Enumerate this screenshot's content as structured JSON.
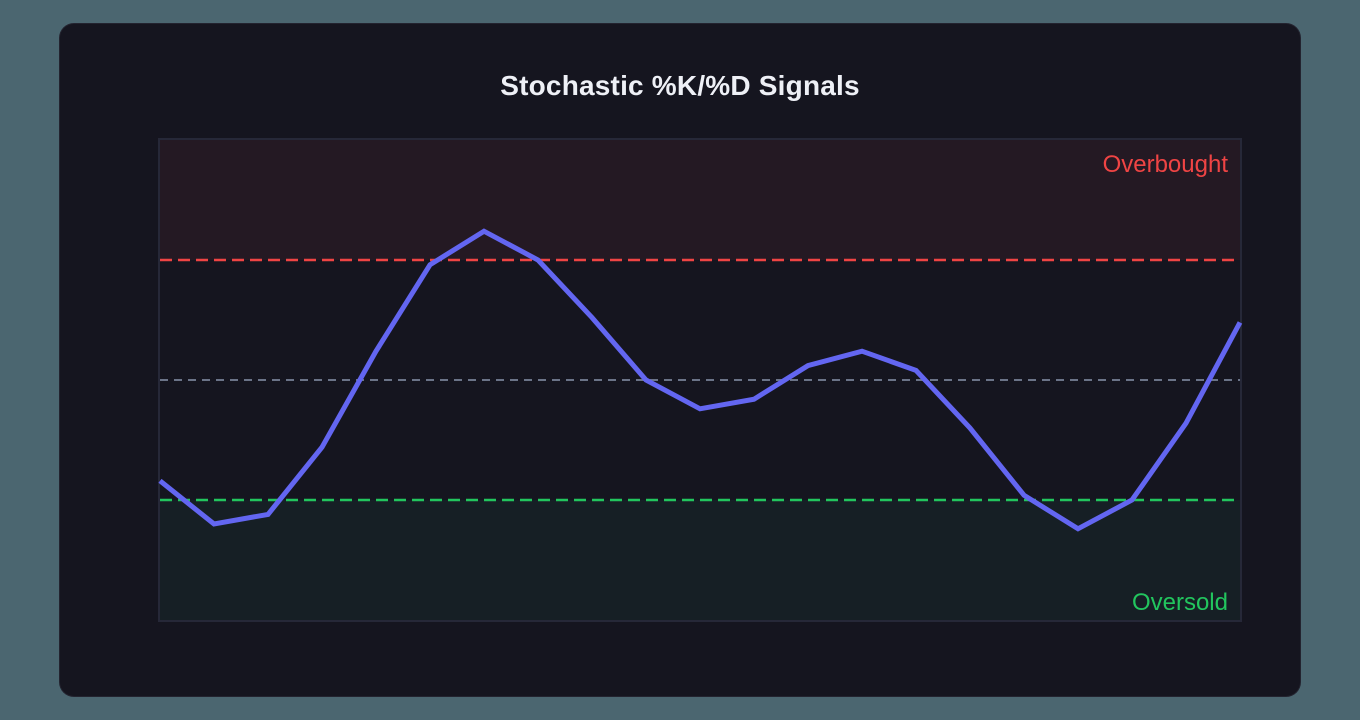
{
  "title": "Stochastic %K/%D Signals",
  "zones": {
    "overbought_label": "Overbought",
    "oversold_label": "Oversold"
  },
  "colors": {
    "background": "#4b6670",
    "card": "#15151f",
    "line": "#6366f1",
    "overbought": "#ef4444",
    "oversold": "#22c55e",
    "midline": "#6b7488",
    "overbought_zone": "#241923",
    "oversold_zone": "#161f25"
  },
  "chart_data": {
    "type": "line",
    "title": "Stochastic %K/%D Signals",
    "xlabel": "",
    "ylabel": "",
    "ylim": [
      0,
      100
    ],
    "grid": false,
    "legend": "none",
    "x": [
      0,
      1,
      2,
      3,
      4,
      5,
      6,
      7,
      8,
      9,
      10,
      11,
      12,
      13,
      14,
      15,
      16,
      17,
      18,
      19,
      20
    ],
    "series": [
      {
        "name": "%K",
        "values": [
          29,
          20,
          22,
          36,
          56,
          74,
          81,
          75,
          63,
          50,
          44,
          46,
          53,
          56,
          52,
          40,
          26,
          19,
          25,
          41,
          62
        ]
      }
    ],
    "reference_lines": [
      {
        "name": "overbought",
        "y": 75,
        "style": "dashed",
        "color": "#ef4444"
      },
      {
        "name": "midline",
        "y": 50,
        "style": "dashed",
        "color": "#6b7488"
      },
      {
        "name": "oversold",
        "y": 25,
        "style": "dashed",
        "color": "#22c55e"
      }
    ],
    "annotations": [
      {
        "text": "Overbought",
        "position": "top-right",
        "color": "#ef4444"
      },
      {
        "text": "Oversold",
        "position": "bottom-right",
        "color": "#22c55e"
      }
    ]
  }
}
